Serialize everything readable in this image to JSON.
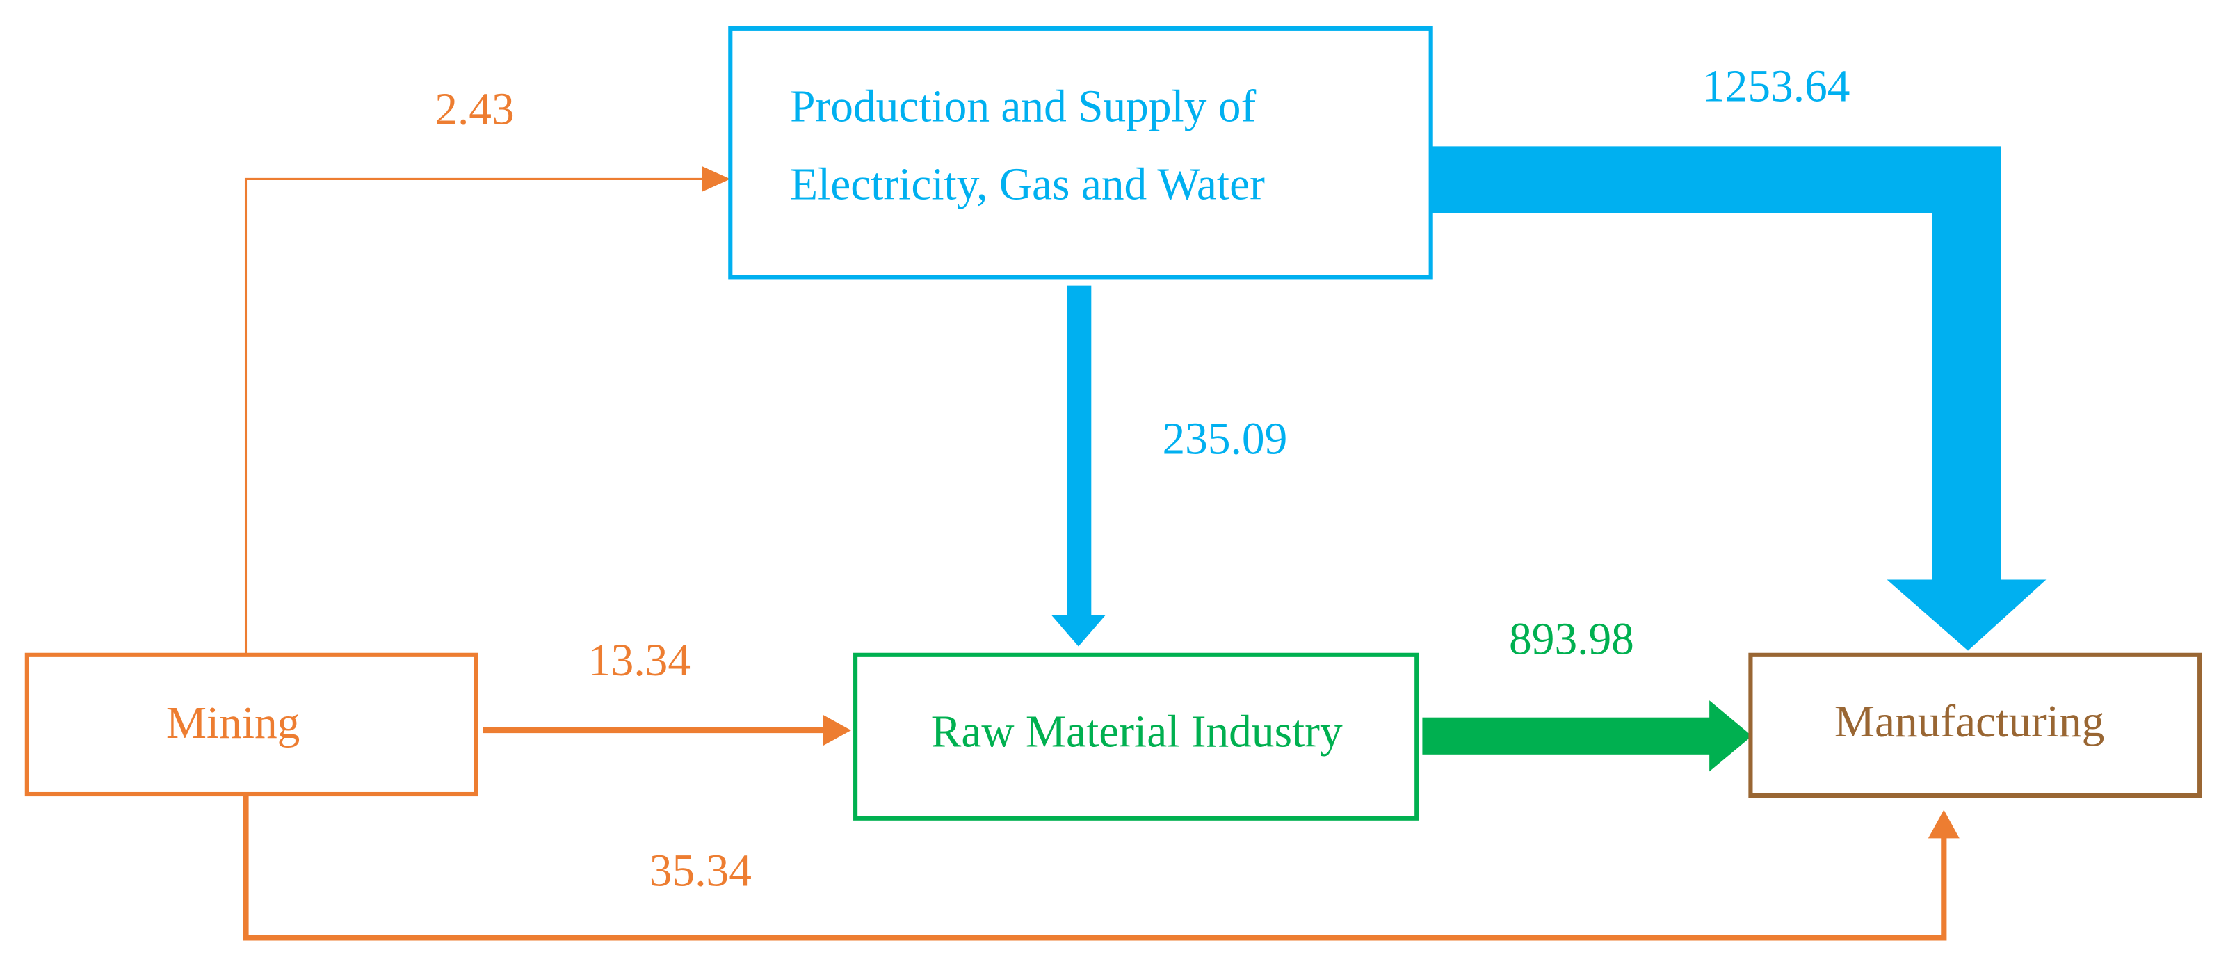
{
  "nodes": [
    {
      "lines": [
        "Production and Supply of",
        "Electricity, Gas and Water"
      ]
    },
    {
      "label": "Mining"
    },
    {
      "label": "Raw Material Industry"
    },
    {
      "label": "Manufacturing"
    }
  ],
  "edges": [
    {
      "label": "2.43"
    },
    {
      "label": "1253.64"
    },
    {
      "label": "235.09"
    },
    {
      "label": "13.34"
    },
    {
      "label": "893.98"
    },
    {
      "label": "35.34"
    }
  ]
}
